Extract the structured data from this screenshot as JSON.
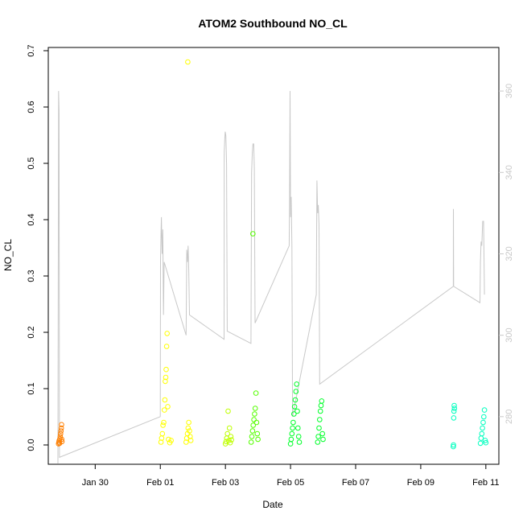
{
  "chart_data": {
    "type": "scatter",
    "title": "ATOM2 Southbound NO_CL",
    "xlabel": "Date",
    "ylabel": "NO_CL",
    "x_ticks": [
      "Jan 30",
      "Feb 01",
      "Feb 03",
      "Feb 05",
      "Feb 07",
      "Feb 09",
      "Feb 11"
    ],
    "y_ticks": [
      "0.0",
      "0.1",
      "0.2",
      "0.3",
      "0.4",
      "0.5",
      "0.6",
      "0.7"
    ],
    "y2_ticks": [
      "280",
      "300",
      "320",
      "340",
      "360"
    ],
    "ylim": [
      0,
      0.7
    ],
    "y2lim": [
      268.5,
      370.5
    ],
    "x_range": [
      "2013-01-28T14:00",
      "2013-02-11T09:00"
    ],
    "grid": false,
    "colors": {
      "overlay_line": "#c8c8c8",
      "right_axis": "#c8c8c8"
    },
    "series": [
      {
        "color": "#ff7f00",
        "points": [
          [
            "2013-01-28T21:00",
            0.002
          ],
          [
            "2013-01-28T21:15",
            0.005
          ],
          [
            "2013-01-28T21:30",
            0.008
          ],
          [
            "2013-01-28T21:45",
            0.003
          ],
          [
            "2013-01-28T22:00",
            0.011
          ],
          [
            "2013-01-28T22:15",
            0.015
          ],
          [
            "2013-01-28T22:30",
            0.02
          ],
          [
            "2013-01-28T22:45",
            0.025
          ],
          [
            "2013-01-28T23:00",
            0.03
          ],
          [
            "2013-01-28T23:10",
            0.036
          ],
          [
            "2013-01-28T23:20",
            0.01
          ],
          [
            "2013-01-28T23:30",
            0.006
          ]
        ]
      },
      {
        "color": "#ffff00",
        "points": [
          [
            "2013-02-01T00:30",
            0.005
          ],
          [
            "2013-02-01T01:00",
            0.012
          ],
          [
            "2013-02-01T01:30",
            0.02
          ],
          [
            "2013-02-01T02:00",
            0.035
          ],
          [
            "2013-02-01T02:30",
            0.04
          ],
          [
            "2013-02-01T03:00",
            0.062
          ],
          [
            "2013-02-01T03:20",
            0.08
          ],
          [
            "2013-02-01T03:40",
            0.113
          ],
          [
            "2013-02-01T04:00",
            0.12
          ],
          [
            "2013-02-01T04:20",
            0.134
          ],
          [
            "2013-02-01T04:40",
            0.175
          ],
          [
            "2013-02-01T05:00",
            0.198
          ],
          [
            "2013-02-01T05:30",
            0.068
          ],
          [
            "2013-02-01T06:00",
            0.01
          ],
          [
            "2013-02-01T07:00",
            0.004
          ],
          [
            "2013-02-01T08:00",
            0.008
          ],
          [
            "2013-02-01T19:00",
            0.005
          ],
          [
            "2013-02-01T19:30",
            0.012
          ],
          [
            "2013-02-01T20:00",
            0.02
          ],
          [
            "2013-02-01T20:30",
            0.03
          ],
          [
            "2013-02-01T21:00",
            0.04
          ],
          [
            "2013-02-01T21:30",
            0.025
          ],
          [
            "2013-02-01T22:00",
            0.015
          ],
          [
            "2013-02-01T22:30",
            0.008
          ],
          [
            "2013-02-01T20:15",
            0.68
          ]
        ]
      },
      {
        "color": "#bfff00",
        "points": [
          [
            "2013-02-03T00:00",
            0.002
          ],
          [
            "2013-02-03T00:30",
            0.006
          ],
          [
            "2013-02-03T01:00",
            0.012
          ],
          [
            "2013-02-03T01:30",
            0.02
          ],
          [
            "2013-02-03T02:00",
            0.06
          ],
          [
            "2013-02-03T02:30",
            0.008
          ],
          [
            "2013-02-03T03:00",
            0.03
          ],
          [
            "2013-02-03T03:30",
            0.004
          ],
          [
            "2013-02-03T04:00",
            0.015
          ],
          [
            "2013-02-03T04:30",
            0.009
          ]
        ]
      },
      {
        "color": "#55ff00",
        "points": [
          [
            "2013-02-03T19:00",
            0.005
          ],
          [
            "2013-02-03T19:30",
            0.015
          ],
          [
            "2013-02-03T20:00",
            0.025
          ],
          [
            "2013-02-03T20:30",
            0.035
          ],
          [
            "2013-02-03T21:00",
            0.045
          ],
          [
            "2013-02-03T21:30",
            0.055
          ],
          [
            "2013-02-03T22:00",
            0.065
          ],
          [
            "2013-02-03T22:30",
            0.092
          ],
          [
            "2013-02-03T23:00",
            0.04
          ],
          [
            "2013-02-03T23:30",
            0.02
          ],
          [
            "2013-02-04T00:00",
            0.01
          ],
          [
            "2013-02-03T20:15",
            0.375
          ]
        ]
      },
      {
        "color": "#00ff2a",
        "points": [
          [
            "2013-02-05T00:00",
            0.002
          ],
          [
            "2013-02-05T00:30",
            0.01
          ],
          [
            "2013-02-05T01:00",
            0.02
          ],
          [
            "2013-02-05T01:30",
            0.03
          ],
          [
            "2013-02-05T02:00",
            0.04
          ],
          [
            "2013-02-05T02:30",
            0.055
          ],
          [
            "2013-02-05T03:00",
            0.068
          ],
          [
            "2013-02-05T03:30",
            0.08
          ],
          [
            "2013-02-05T04:00",
            0.095
          ],
          [
            "2013-02-05T04:30",
            0.108
          ],
          [
            "2013-02-05T05:00",
            0.06
          ],
          [
            "2013-02-05T05:30",
            0.03
          ],
          [
            "2013-02-05T06:00",
            0.015
          ],
          [
            "2013-02-05T06:30",
            0.005
          ],
          [
            "2013-02-05T20:00",
            0.005
          ],
          [
            "2013-02-05T20:30",
            0.015
          ],
          [
            "2013-02-05T21:00",
            0.03
          ],
          [
            "2013-02-05T21:30",
            0.045
          ],
          [
            "2013-02-05T22:00",
            0.06
          ],
          [
            "2013-02-05T22:30",
            0.07
          ],
          [
            "2013-02-05T23:00",
            0.078
          ],
          [
            "2013-02-05T23:30",
            0.02
          ],
          [
            "2013-02-06T00:00",
            0.01
          ]
        ]
      },
      {
        "color": "#00ffbf",
        "points": [
          [
            "2013-02-10T00:00",
            -0.003
          ],
          [
            "2013-02-10T00:10",
            0.0
          ],
          [
            "2013-02-10T00:20",
            0.048
          ],
          [
            "2013-02-10T00:30",
            0.06
          ],
          [
            "2013-02-10T00:40",
            0.07
          ],
          [
            "2013-02-10T00:50",
            0.065
          ],
          [
            "2013-02-10T20:00",
            0.003
          ],
          [
            "2013-02-10T20:30",
            0.012
          ],
          [
            "2013-02-10T21:00",
            0.02
          ],
          [
            "2013-02-10T21:30",
            0.03
          ],
          [
            "2013-02-10T22:00",
            0.04
          ],
          [
            "2013-02-10T22:30",
            0.05
          ],
          [
            "2013-02-10T23:00",
            0.062
          ],
          [
            "2013-02-10T23:30",
            0.008
          ],
          [
            "2013-02-11T00:00",
            0.004
          ]
        ]
      }
    ],
    "overlay_line": [
      [
        "2013-01-28T20:30",
        268.5
      ],
      [
        "2013-01-28T21:00",
        360
      ],
      [
        "2013-01-28T21:20",
        355
      ],
      [
        "2013-01-28T21:40",
        270
      ],
      [
        "2013-02-01T00:00",
        280
      ],
      [
        "2013-02-01T00:10",
        318
      ],
      [
        "2013-02-01T00:30",
        325
      ],
      [
        "2013-02-01T00:50",
        329
      ],
      [
        "2013-02-01T01:20",
        320
      ],
      [
        "2013-02-01T01:50",
        326
      ],
      [
        "2013-02-01T02:20",
        305
      ],
      [
        "2013-02-01T02:50",
        318
      ],
      [
        "2013-02-01T19:00",
        300
      ],
      [
        "2013-02-01T19:30",
        321
      ],
      [
        "2013-02-01T20:00",
        318
      ],
      [
        "2013-02-01T20:30",
        322
      ],
      [
        "2013-02-01T21:00",
        316
      ],
      [
        "2013-02-01T21:30",
        305
      ],
      [
        "2013-02-02T23:00",
        299
      ],
      [
        "2013-02-02T23:10",
        345
      ],
      [
        "2013-02-02T23:30",
        348
      ],
      [
        "2013-02-02T23:50",
        350
      ],
      [
        "2013-02-03T00:20",
        349
      ],
      [
        "2013-02-03T00:50",
        342
      ],
      [
        "2013-02-03T01:20",
        301
      ],
      [
        "2013-02-03T18:50",
        298
      ],
      [
        "2013-02-03T19:20",
        340
      ],
      [
        "2013-02-03T19:50",
        345
      ],
      [
        "2013-02-03T20:20",
        347
      ],
      [
        "2013-02-03T20:50",
        347
      ],
      [
        "2013-02-03T21:20",
        341
      ],
      [
        "2013-02-03T21:50",
        303
      ],
      [
        "2013-02-04T23:00",
        322
      ],
      [
        "2013-02-04T23:20",
        335
      ],
      [
        "2013-02-04T23:40",
        360
      ],
      [
        "2013-02-05T00:00",
        329
      ],
      [
        "2013-02-05T00:30",
        334
      ],
      [
        "2013-02-05T01:00",
        322
      ],
      [
        "2013-02-05T01:30",
        280
      ],
      [
        "2013-02-05T19:00",
        310
      ],
      [
        "2013-02-05T19:30",
        338
      ],
      [
        "2013-02-05T20:00",
        330
      ],
      [
        "2013-02-05T20:30",
        332
      ],
      [
        "2013-02-05T21:00",
        327
      ],
      [
        "2013-02-05T21:30",
        288
      ],
      [
        "2013-02-10T00:00",
        312
      ],
      [
        "2013-02-10T00:05",
        331
      ],
      [
        "2013-02-10T00:15",
        312
      ],
      [
        "2013-02-10T19:40",
        308
      ],
      [
        "2013-02-10T20:00",
        318
      ],
      [
        "2013-02-10T20:30",
        323
      ],
      [
        "2013-02-10T21:00",
        322
      ],
      [
        "2013-02-10T21:40",
        328
      ],
      [
        "2013-02-10T22:20",
        328
      ],
      [
        "2013-02-10T23:00",
        310
      ]
    ]
  }
}
